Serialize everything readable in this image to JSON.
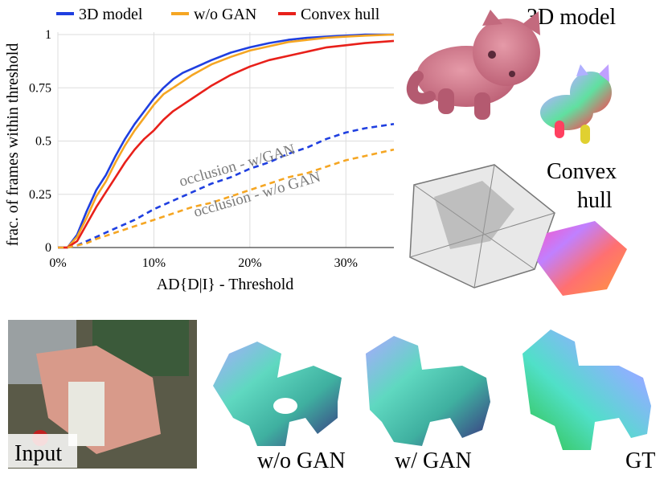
{
  "chart_data": {
    "type": "line",
    "xlabel": "AD{D|I} - Threshold",
    "ylabel": "frac. of frames within threshold",
    "xlim": [
      0,
      35
    ],
    "ylim": [
      0,
      1
    ],
    "x_ticks": [
      0,
      10,
      20,
      30
    ],
    "x_tick_labels": [
      "0%",
      "10%",
      "20%",
      "30%"
    ],
    "y_ticks": [
      0,
      0.25,
      0.5,
      0.75,
      1
    ],
    "y_tick_labels": [
      "0",
      "0.25",
      "0.5",
      "0.75",
      "1"
    ],
    "grid": true,
    "legend_position": "top",
    "series": [
      {
        "name": "3D model",
        "color": "#1f3fe0",
        "dashed": false,
        "x": [
          0,
          1,
          2,
          3,
          4,
          5,
          6,
          7,
          8,
          9,
          10,
          11,
          12,
          13,
          14,
          16,
          18,
          20,
          22,
          24,
          26,
          28,
          30,
          32,
          35
        ],
        "y": [
          0,
          0,
          0.06,
          0.17,
          0.27,
          0.34,
          0.43,
          0.51,
          0.58,
          0.64,
          0.7,
          0.75,
          0.79,
          0.82,
          0.84,
          0.88,
          0.915,
          0.94,
          0.96,
          0.975,
          0.985,
          0.99,
          0.995,
          1.0,
          1.0
        ]
      },
      {
        "name": "w/o GAN",
        "color": "#f5a623",
        "dashed": false,
        "x": [
          0,
          1,
          2,
          3,
          4,
          5,
          6,
          7,
          8,
          9,
          10,
          11,
          12,
          13,
          14,
          16,
          18,
          20,
          22,
          24,
          26,
          28,
          30,
          32,
          35
        ],
        "y": [
          0,
          0,
          0.05,
          0.14,
          0.24,
          0.31,
          0.4,
          0.48,
          0.55,
          0.61,
          0.67,
          0.72,
          0.75,
          0.78,
          0.81,
          0.86,
          0.895,
          0.925,
          0.945,
          0.965,
          0.975,
          0.985,
          0.99,
          0.995,
          1.0
        ]
      },
      {
        "name": "Convex hull",
        "color": "#e8201a",
        "dashed": false,
        "x": [
          0,
          1,
          2,
          3,
          4,
          5,
          6,
          7,
          8,
          9,
          10,
          11,
          12,
          13,
          14,
          16,
          18,
          20,
          22,
          24,
          26,
          28,
          30,
          32,
          35
        ],
        "y": [
          0,
          0,
          0.03,
          0.11,
          0.19,
          0.26,
          0.33,
          0.4,
          0.46,
          0.51,
          0.55,
          0.6,
          0.64,
          0.67,
          0.7,
          0.76,
          0.81,
          0.85,
          0.88,
          0.9,
          0.92,
          0.94,
          0.95,
          0.96,
          0.97
        ]
      },
      {
        "name": "occlusion - w/GAN",
        "color": "#1f3fe0",
        "dashed": true,
        "x": [
          0,
          1,
          2,
          3,
          4,
          6,
          8,
          10,
          12,
          14,
          16,
          18,
          20,
          22,
          24,
          26,
          28,
          30,
          32,
          35
        ],
        "y": [
          0,
          0,
          0.01,
          0.03,
          0.05,
          0.09,
          0.13,
          0.18,
          0.22,
          0.26,
          0.3,
          0.33,
          0.37,
          0.4,
          0.44,
          0.47,
          0.51,
          0.54,
          0.56,
          0.58
        ]
      },
      {
        "name": "occlusion - w/o GAN",
        "color": "#f5a623",
        "dashed": true,
        "x": [
          0,
          1,
          2,
          3,
          4,
          6,
          8,
          10,
          12,
          14,
          16,
          18,
          20,
          22,
          24,
          26,
          28,
          30,
          32,
          35
        ],
        "y": [
          0,
          0,
          0.01,
          0.02,
          0.04,
          0.07,
          0.1,
          0.13,
          0.16,
          0.19,
          0.21,
          0.24,
          0.27,
          0.3,
          0.33,
          0.35,
          0.38,
          0.41,
          0.43,
          0.46
        ]
      }
    ],
    "annotations": [
      "occlusion - w/GAN",
      "occlusion - w/o GAN"
    ]
  },
  "legend": {
    "items": [
      {
        "label": "3D model",
        "color": "#1f3fe0"
      },
      {
        "label": "w/o GAN",
        "color": "#f5a623"
      },
      {
        "label": "Convex hull",
        "color": "#e8201a"
      }
    ]
  },
  "annotations": {
    "wgan": "occlusion - w/GAN",
    "wogan": "occlusion - w/o GAN"
  },
  "panels": {
    "model_label": "3D model",
    "convex_label_line1": "Convex",
    "convex_label_line2": "hull",
    "input_label": "Input",
    "wogan_label": "w/o GAN",
    "wgan_label": "w/ GAN",
    "gt_label": "GT"
  }
}
